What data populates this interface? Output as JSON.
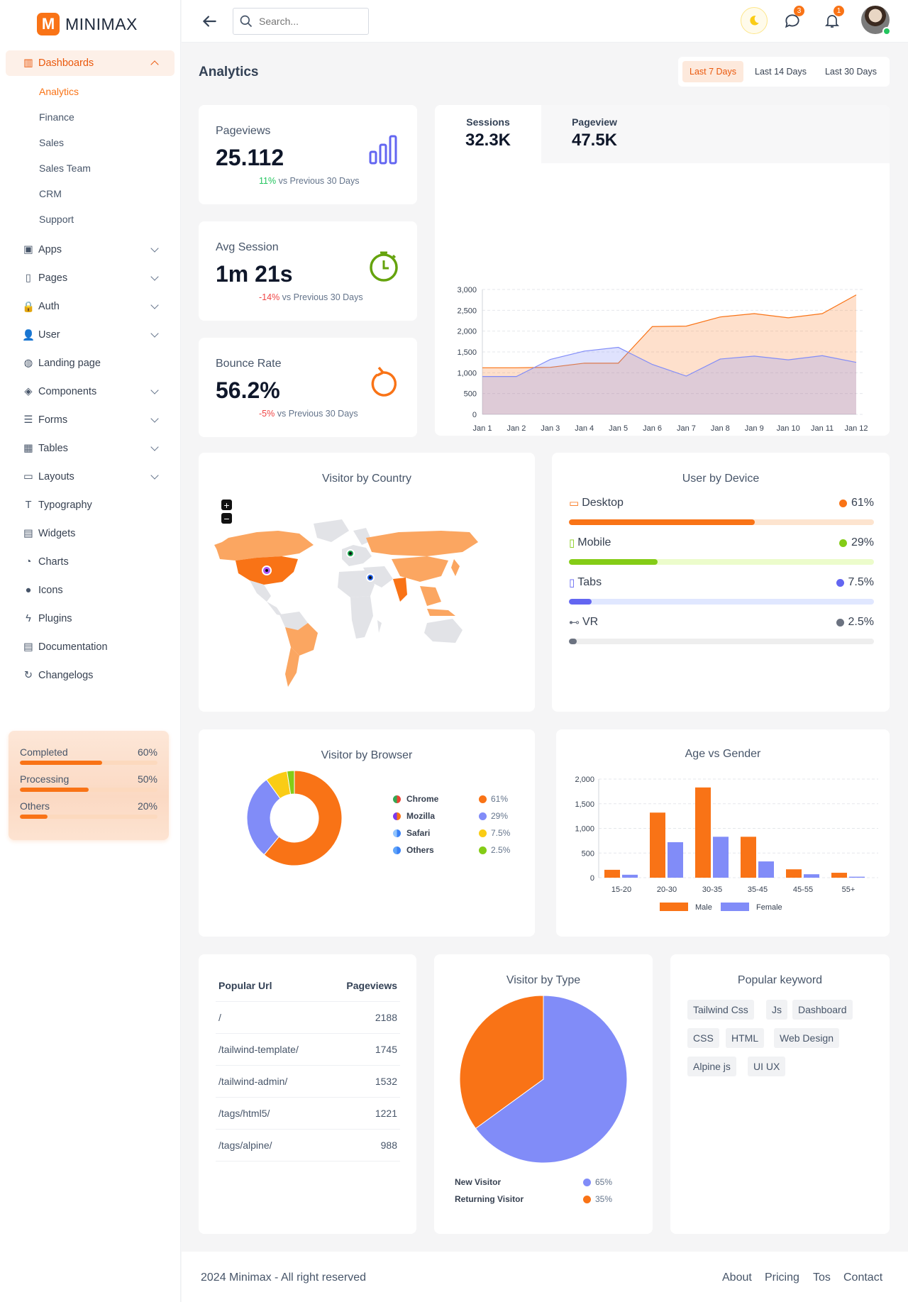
{
  "brand": {
    "logo_letter": "M",
    "name": "MINIMAX"
  },
  "header": {
    "search_placeholder": "Search...",
    "messages_badge": "3",
    "notifications_badge": "1"
  },
  "sidebar": {
    "dashboards": {
      "label": "Dashboards",
      "children": [
        "Analytics",
        "Finance",
        "Sales",
        "Sales Team",
        "CRM",
        "Support"
      ]
    },
    "items": [
      "Apps",
      "Pages",
      "Auth",
      "User",
      "Landing page",
      "Components",
      "Forms",
      "Tables",
      "Layouts",
      "Typography",
      "Widgets",
      "Charts",
      "Icons",
      "Plugins",
      "Documentation",
      "Changelogs"
    ],
    "progress": [
      {
        "label": "Completed",
        "value": "60%",
        "fraction": 0.6
      },
      {
        "label": "Processing",
        "value": "50%",
        "fraction": 0.5
      },
      {
        "label": "Others",
        "value": "20%",
        "fraction": 0.2
      }
    ]
  },
  "page": {
    "title": "Analytics",
    "ranges": [
      "Last 7 Days",
      "Last 14 Days",
      "Last 30 Days"
    ],
    "selected_range": "Last 7 Days"
  },
  "stats": [
    {
      "label": "Pageviews",
      "value": "25.112",
      "delta": "11%",
      "delta_text": "vs Previous 30 Days",
      "trend": "up"
    },
    {
      "label": "Avg Session",
      "value": "1m 21s",
      "delta": "-14%",
      "delta_text": "vs Previous 30 Days",
      "trend": "down"
    },
    {
      "label": "Bounce Rate",
      "value": "56.2%",
      "delta": "-5%",
      "delta_text": "vs Previous 30 Days",
      "trend": "down"
    }
  ],
  "traffic_tabs": [
    {
      "label": "Sessions",
      "value": "32.3K"
    },
    {
      "label": "Pageview",
      "value": "47.5K"
    }
  ],
  "country": {
    "title": "Visitor by Country",
    "zoom_in": "+",
    "zoom_out": "−"
  },
  "device": {
    "title": "User by Device",
    "items": [
      {
        "name": "Desktop",
        "value": "61%",
        "fraction": 0.61,
        "color": "#f97316",
        "track": "#fde4cf",
        "icon": "monitor-icon"
      },
      {
        "name": "Mobile",
        "value": "29%",
        "fraction": 0.29,
        "color": "#84cc16",
        "track": "#ecfccb",
        "icon": "mobile-icon"
      },
      {
        "name": "Tabs",
        "value": "7.5%",
        "fraction": 0.075,
        "color": "#6366f1",
        "track": "#e0e7ff",
        "icon": "tablet-icon"
      },
      {
        "name": "VR",
        "value": "2.5%",
        "fraction": 0.025,
        "color": "#6b7280",
        "track": "#eeeeee",
        "icon": "vr-icon"
      }
    ]
  },
  "browser": {
    "title": "Visitor by Browser",
    "items": [
      {
        "name": "Chrome",
        "value": "61%",
        "color": "#f97316"
      },
      {
        "name": "Mozilla",
        "value": "29%",
        "color": "#818cf8"
      },
      {
        "name": "Safari",
        "value": "7.5%",
        "color": "#facc15"
      },
      {
        "name": "Others",
        "value": "2.5%",
        "color": "#84cc16"
      }
    ]
  },
  "popular_urls": {
    "col_url": "Popular Url",
    "col_views": "Pageviews",
    "rows": [
      {
        "url": "/",
        "views": "2188"
      },
      {
        "url": "/tailwind-template/",
        "views": "1745"
      },
      {
        "url": "/tailwind-admin/",
        "views": "1532"
      },
      {
        "url": "/tags/html5/",
        "views": "1221"
      },
      {
        "url": "/tags/alpine/",
        "views": "988"
      }
    ]
  },
  "visitor_type": {
    "title": "Visitor by Type",
    "items": [
      {
        "name": "New Visitor",
        "value": "65%",
        "color": "#818cf8"
      },
      {
        "name": "Returning Visitor",
        "value": "35%",
        "color": "#f97316"
      }
    ]
  },
  "keywords": {
    "title": "Popular keyword",
    "items": [
      "Tailwind Css",
      "Js",
      "Dashboard",
      "CSS",
      "HTML",
      "Web Design",
      "Alpine js",
      "UI UX"
    ]
  },
  "footer": {
    "copyright": "2024 Minimax - All right reserved",
    "links": [
      "About",
      "Pricing",
      "Tos",
      "Contact"
    ]
  },
  "chart_data": [
    {
      "type": "area",
      "title": "",
      "categories": [
        "Jan 1",
        "Jan 2",
        "Jan 3",
        "Jan 4",
        "Jan 5",
        "Jan 6",
        "Jan 7",
        "Jan 8",
        "Jan 9",
        "Jan 10",
        "Jan 11",
        "Jan 12"
      ],
      "ylim": [
        0,
        3000
      ],
      "yticks": [
        "0",
        "500",
        "1,000",
        "1,500",
        "2,000",
        "2,500",
        "3,000"
      ],
      "series": [
        {
          "values": [
            1120,
            1120,
            1130,
            1230,
            1230,
            2110,
            2120,
            2340,
            2420,
            2320,
            2420,
            2870
          ],
          "color": "#f97316"
        },
        {
          "values": [
            910,
            910,
            1320,
            1520,
            1610,
            1200,
            920,
            1330,
            1400,
            1310,
            1410,
            1250
          ],
          "color": "#818cf8"
        }
      ]
    },
    {
      "type": "pie",
      "title": "Visitor by Browser",
      "donut": true,
      "labels": [
        "Chrome",
        "Mozilla",
        "Safari",
        "Others"
      ],
      "values": [
        61,
        29,
        7.5,
        2.5
      ],
      "colors": [
        "#f97316",
        "#818cf8",
        "#facc15",
        "#84cc16"
      ]
    },
    {
      "type": "bar",
      "title": "Age vs Gender",
      "categories": [
        "15-20",
        "20-30",
        "30-35",
        "35-45",
        "45-55",
        "55+"
      ],
      "ylim": [
        0,
        2000
      ],
      "yticks": [
        "0",
        "500",
        "1,000",
        "1,500",
        "2,000"
      ],
      "series": [
        {
          "name": "Male",
          "values": [
            160,
            1320,
            1830,
            830,
            170,
            100
          ],
          "color": "#f97316"
        },
        {
          "name": "Female",
          "values": [
            60,
            720,
            830,
            330,
            70,
            20
          ],
          "color": "#818cf8"
        }
      ]
    },
    {
      "type": "pie",
      "title": "Visitor by Type",
      "labels": [
        "New Visitor",
        "Returning Visitor"
      ],
      "values": [
        65,
        35
      ],
      "colors": [
        "#818cf8",
        "#f97316"
      ]
    }
  ]
}
